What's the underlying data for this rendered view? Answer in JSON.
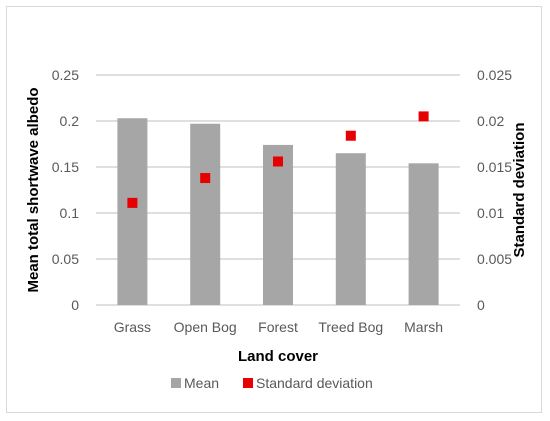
{
  "chart_data": {
    "type": "bar",
    "title": "",
    "categories": [
      "Grass",
      "Open Bog",
      "Forest",
      "Treed Bog",
      "Marsh"
    ],
    "series": [
      {
        "name": "Mean",
        "type": "bar",
        "axis": "left",
        "color": "#a6a6a6",
        "values": [
          0.203,
          0.197,
          0.174,
          0.165,
          0.154
        ]
      },
      {
        "name": "Standard deviation",
        "type": "scatter",
        "axis": "right",
        "color": "#e60000",
        "values": [
          0.0111,
          0.0138,
          0.0156,
          0.0184,
          0.0205
        ]
      }
    ],
    "xlabel": "Land cover",
    "ylabel": "Mean total shortwave albedo",
    "y2label": "Standard deviation",
    "ylim": [
      0,
      0.25
    ],
    "y2lim": [
      0,
      0.025
    ],
    "yticks": [
      "0",
      "0.05",
      "0.1",
      "0.15",
      "0.2",
      "0.25"
    ],
    "y2ticks": [
      "0",
      "0.005",
      "0.01",
      "0.015",
      "0.02",
      "0.025"
    ],
    "grid": true,
    "legend_position": "bottom"
  }
}
